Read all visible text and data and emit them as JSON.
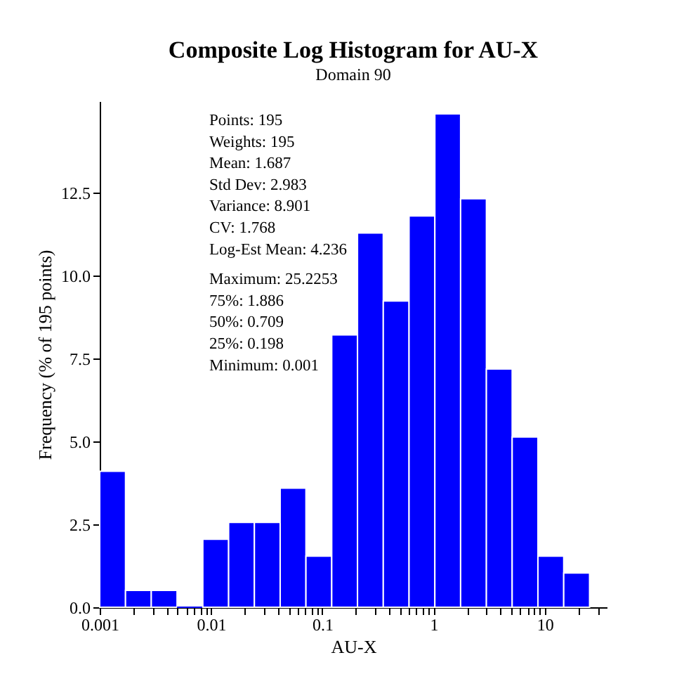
{
  "chart_data": {
    "type": "histogram",
    "title": "Composite Log Histogram for AU-X",
    "subtitle": "Domain 90",
    "xlabel": "AU-X",
    "ylabel": "Frequency (% of 195 points)",
    "bins": [
      0.001,
      0.001705,
      0.002906,
      0.004954,
      0.008445,
      0.0144,
      0.02454,
      0.04184,
      0.07132,
      0.1216,
      0.2073,
      0.3533,
      0.6023,
      1.027,
      1.75,
      2.984,
      5.086,
      8.67,
      14.78,
      25.23
    ],
    "values": [
      4.1,
      0.51,
      0.51,
      0,
      2.05,
      2.56,
      2.56,
      3.59,
      1.54,
      8.21,
      11.28,
      9.23,
      11.79,
      14.87,
      12.31,
      7.18,
      5.13,
      1.54,
      1.03
    ],
    "color": "#0000ff",
    "log": "x",
    "xlim": [
      0.001,
      36
    ],
    "xticks": [
      0.001,
      {
        "value": 0.002,
        "label": null
      },
      {
        "value": 0.003,
        "label": null
      },
      {
        "value": 0.004,
        "label": null
      },
      {
        "value": 0.005,
        "label": null
      },
      {
        "value": 0.006,
        "label": null
      },
      {
        "value": 0.007,
        "label": null
      },
      {
        "value": 0.008,
        "label": null
      },
      {
        "value": 0.009,
        "label": null
      },
      0.01,
      {
        "value": 0.02,
        "label": null
      },
      {
        "value": 0.03,
        "label": null
      },
      {
        "value": 0.04,
        "label": null
      },
      {
        "value": 0.05,
        "label": null
      },
      {
        "value": 0.06,
        "label": null
      },
      {
        "value": 0.07,
        "label": null
      },
      {
        "value": 0.08,
        "label": null
      },
      {
        "value": 0.09,
        "label": null
      },
      0.1,
      {
        "value": 0.2,
        "label": null
      },
      {
        "value": 0.3,
        "label": null
      },
      {
        "value": 0.4,
        "label": null
      },
      {
        "value": 0.5,
        "label": null
      },
      {
        "value": 0.6,
        "label": null
      },
      {
        "value": 0.7,
        "label": null
      },
      {
        "value": 0.8,
        "label": null
      },
      {
        "value": 0.9,
        "label": null
      },
      1,
      {
        "value": 2,
        "label": null
      },
      {
        "value": 3,
        "label": null
      },
      {
        "value": 4,
        "label": null
      },
      {
        "value": 5,
        "label": null
      },
      {
        "value": 6,
        "label": null
      },
      {
        "value": 7,
        "label": null
      },
      {
        "value": 8,
        "label": null
      },
      {
        "value": 9,
        "label": null
      },
      10,
      {
        "value": 20,
        "label": null
      },
      {
        "value": 30,
        "label": null
      }
    ],
    "ylim": [
      0,
      15.25
    ],
    "yticks": [
      {
        "value": 0,
        "label": "0.0"
      },
      2.5,
      {
        "value": 5,
        "label": "5.0"
      },
      7.5,
      {
        "value": 10,
        "label": "10.0"
      },
      12.5
    ],
    "grid": false,
    "annotations": [
      "Points: 195",
      "Weights: 195",
      "Mean: 1.687",
      "Std Dev: 2.983",
      "Variance: 8.901",
      "CV: 1.768",
      "Log-Est Mean: 4.236",
      "Maximum: 25.2253",
      "75%: 1.886",
      "50%: 0.709",
      "25%: 0.198",
      "Minimum: 0.001"
    ]
  }
}
